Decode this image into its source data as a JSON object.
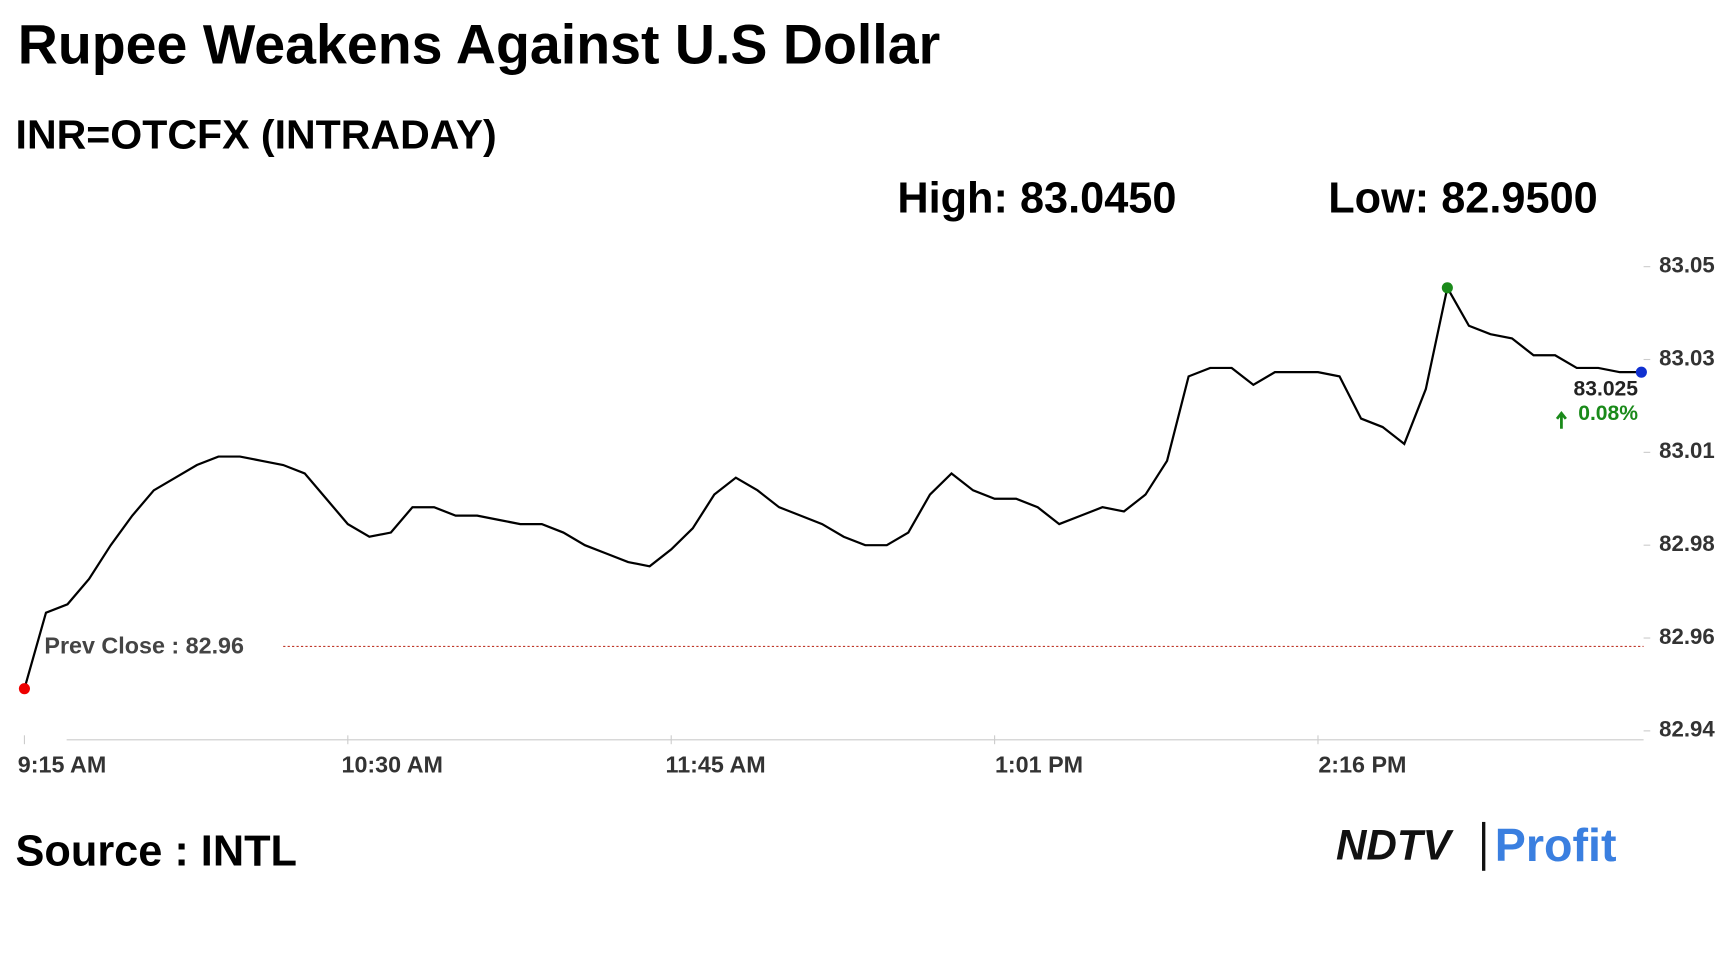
{
  "chart_data": {
    "type": "line",
    "title": "Rupee Weakens Against U.S Dollar",
    "subtitle": "INR=OTCFX (INTRADAY)",
    "high_label": "High: 83.0450",
    "low_label": "Low: 82.9500",
    "categories": [
      "9:15 AM",
      null,
      null,
      null,
      null,
      null,
      null,
      null,
      null,
      null,
      null,
      null,
      null,
      null,
      null,
      "10:30 AM",
      null,
      null,
      null,
      null,
      null,
      null,
      null,
      null,
      null,
      null,
      null,
      null,
      null,
      null,
      "11:45 AM",
      null,
      null,
      null,
      null,
      null,
      null,
      null,
      null,
      null,
      null,
      null,
      null,
      null,
      null,
      "1:01 PM",
      null,
      null,
      null,
      null,
      null,
      null,
      null,
      null,
      null,
      null,
      null,
      null,
      null,
      null,
      "2:16 PM",
      null,
      null,
      null,
      null,
      null,
      null,
      null,
      null,
      null,
      null,
      null,
      null,
      null,
      null,
      null
    ],
    "values": [
      82.95,
      82.968,
      82.97,
      82.976,
      82.984,
      82.991,
      82.997,
      83.0,
      83.003,
      83.005,
      83.005,
      83.004,
      83.003,
      83.001,
      82.995,
      82.989,
      82.986,
      82.987,
      82.993,
      82.993,
      82.991,
      82.991,
      82.99,
      82.989,
      82.989,
      82.987,
      82.984,
      82.982,
      82.98,
      82.979,
      82.983,
      82.988,
      82.996,
      83.0,
      82.997,
      82.993,
      82.991,
      82.989,
      82.986,
      82.984,
      82.984,
      82.987,
      82.996,
      83.001,
      82.997,
      82.995,
      82.995,
      82.993,
      82.989,
      82.991,
      82.993,
      82.992,
      82.996,
      83.004,
      83.024,
      83.026,
      83.026,
      83.022,
      83.025,
      83.025,
      83.025,
      83.024,
      83.014,
      83.012,
      83.008,
      83.021,
      83.045,
      83.036,
      83.034,
      83.033,
      83.029,
      83.029,
      83.026,
      83.026,
      83.025,
      83.025
    ],
    "color": "#000000",
    "ylim": [
      82.94,
      83.05
    ],
    "yticks": [
      82.94,
      {
        "value": 82.962,
        "label": "82.96"
      },
      {
        "value": 82.984,
        "label": "82.98"
      },
      {
        "value": 83.006,
        "label": "83.01"
      },
      {
        "value": 83.028,
        "label": "83.03"
      },
      83.05
    ],
    "prev_close": 82.96,
    "prev_close_label": "Prev Close : 82.96",
    "last_label": "83.025",
    "change_label": "0.08%",
    "source": "Source : INTL",
    "logo_left": "NDTV",
    "logo_right": "Profit"
  }
}
